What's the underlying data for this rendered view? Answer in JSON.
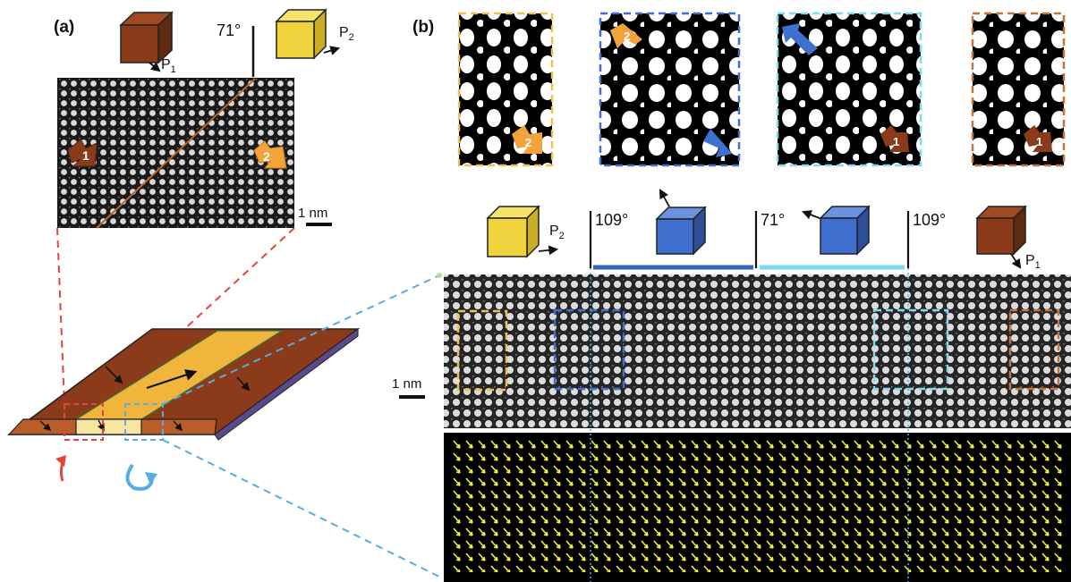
{
  "panel_a": {
    "label": "(a)",
    "angle": "71°",
    "p1": "P",
    "p1_sub": "1",
    "p2": "P",
    "p2_sub": "2",
    "scale": "1 nm",
    "arrow_1": "1",
    "arrow_2": "2"
  },
  "panel_b": {
    "label": "(b)",
    "angle_left": "109°",
    "angle_mid": "71°",
    "angle_right": "109°",
    "p1": "P",
    "p1_sub": "1",
    "p2": "P",
    "p2_sub": "2",
    "scale": "1 nm",
    "inset_arrow_1": "2",
    "inset_arrow_2": "2",
    "inset_arrow_4": "1",
    "inset_arrow_5": "1"
  },
  "colors": {
    "brown": "#8b3a1a",
    "yellow": "#f0d23c",
    "blue": "#3f6fcf",
    "cyan_frame": "#7fd9ef",
    "orange_arrow": "#f2a43a",
    "dash_red": "#e8433b",
    "dash_blue": "#56aee0"
  }
}
